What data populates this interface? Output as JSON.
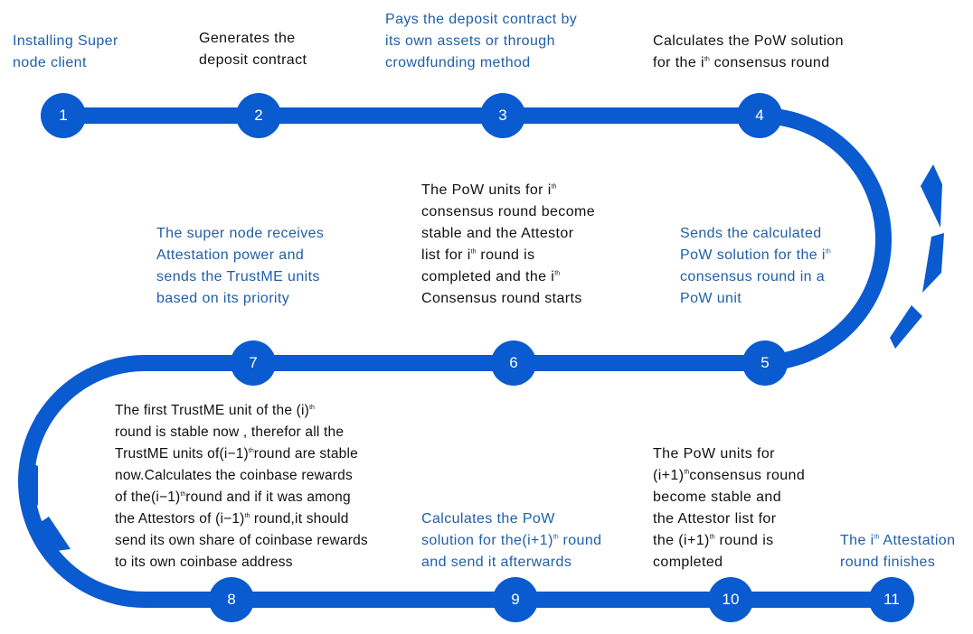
{
  "colors": {
    "track": "#0a5ad0",
    "accent_text": "#1f5fa8",
    "body_text": "#111111"
  },
  "steps": [
    {
      "number": "1",
      "lines": [
        [
          "Installing Super"
        ],
        [
          "node client"
        ]
      ]
    },
    {
      "number": "2",
      "lines": [
        [
          "Generates the"
        ],
        [
          "deposit contract"
        ]
      ]
    },
    {
      "number": "3",
      "lines": [
        [
          "Pays the deposit contract by"
        ],
        [
          "its own assets or through"
        ],
        [
          "crowdfunding method"
        ]
      ]
    },
    {
      "number": "4",
      "lines": [
        [
          "Calculates the PoW solution"
        ],
        [
          "for the i",
          "th",
          " consensus round"
        ]
      ]
    },
    {
      "number": "5",
      "lines": [
        [
          "Sends the calculated"
        ],
        [
          "PoW solution for the i",
          "th"
        ],
        [
          "consensus round in a"
        ],
        [
          "PoW unit"
        ]
      ]
    },
    {
      "number": "6",
      "lines": [
        [
          "The PoW units for i",
          "th"
        ],
        [
          "consensus round become"
        ],
        [
          "stable and the Attestor"
        ],
        [
          "list for i",
          "th",
          " round is"
        ],
        [
          "completed and  the i",
          "th"
        ],
        [
          "Consensus round starts"
        ]
      ]
    },
    {
      "number": "7",
      "lines": [
        [
          "The super node receives"
        ],
        [
          "Attestation power and"
        ],
        [
          "sends the TrustME units"
        ],
        [
          "based on its priority"
        ]
      ]
    },
    {
      "number": "8",
      "lines": [
        [
          "The first TrustME unit of the (i)",
          "th"
        ],
        [
          "round is stable now , therefor all the"
        ],
        [
          "TrustME units of(i−1)",
          "th",
          "round are stable"
        ],
        [
          "now.Calculates the coinbase rewards"
        ],
        [
          "of the(i−1)",
          "th",
          "round and if it was among"
        ],
        [
          "the Attestors of (i−1)",
          "th",
          " round,it should"
        ],
        [
          "send its own share of coinbase rewards"
        ],
        [
          "to its own coinbase address"
        ]
      ]
    },
    {
      "number": "9",
      "lines": [
        [
          "Calculates the PoW"
        ],
        [
          "solution for the(i+1)",
          "th",
          " round"
        ],
        [
          "and send it afterwards"
        ]
      ]
    },
    {
      "number": "10",
      "lines": [
        [
          "The PoW units for"
        ],
        [
          "(i+1)",
          "th",
          "consensus round"
        ],
        [
          "become stable and"
        ],
        [
          "the Attestor list for"
        ],
        [
          "the (i+1)",
          "th",
          " round is"
        ],
        [
          "completed"
        ]
      ]
    },
    {
      "number": "11",
      "lines": [
        [
          "The i",
          "th",
          " Attestation"
        ],
        [
          "round finishes"
        ]
      ]
    }
  ]
}
